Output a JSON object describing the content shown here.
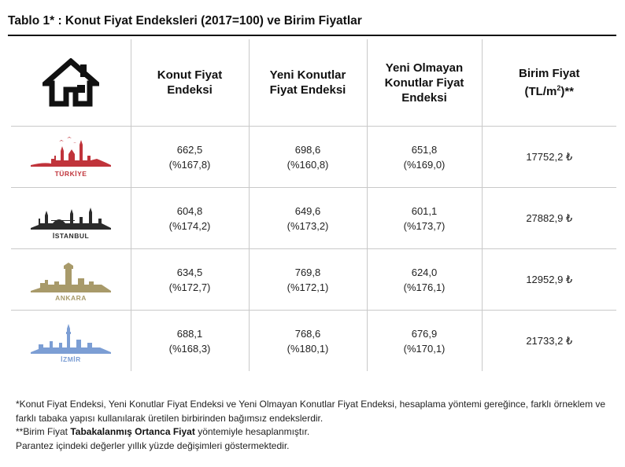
{
  "title": "Tablo 1* : Konut Fiyat Endeksleri (2017=100) ve Birim Fiyatlar",
  "headers": {
    "house_icon": "house-icon",
    "col1": "Konut Fiyat Endeksi",
    "col2": "Yeni Konutlar Fiyat Endeksi",
    "col3": "Yeni Olmayan Konutlar Fiyat Endeksi",
    "col4_main": "Birim Fiyat",
    "col4_unit_pre": "(TL/m",
    "col4_sup": "2",
    "col4_unit_post": ")**"
  },
  "rows": [
    {
      "city": "TÜRKİYE",
      "icon": "turkiye-skyline-icon",
      "color": "#c0343b",
      "kfe": "662,5",
      "kfe_chg": "(%167,8)",
      "ykfe": "698,6",
      "ykfe_chg": "(%160,8)",
      "yokfe": "651,8",
      "yokfe_chg": "(%169,0)",
      "price": "17752,2 ₺"
    },
    {
      "city": "İSTANBUL",
      "icon": "istanbul-skyline-icon",
      "color": "#2b2b2b",
      "kfe": "604,8",
      "kfe_chg": "(%174,2)",
      "ykfe": "649,6",
      "ykfe_chg": "(%173,2)",
      "yokfe": "601,1",
      "yokfe_chg": "(%173,7)",
      "price": "27882,9 ₺"
    },
    {
      "city": "ANKARA",
      "icon": "ankara-skyline-icon",
      "color": "#a89a6a",
      "kfe": "634,5",
      "kfe_chg": "(%172,7)",
      "ykfe": "769,8",
      "ykfe_chg": "(%172,1)",
      "yokfe": "624,0",
      "yokfe_chg": "(%176,1)",
      "price": "12952,9 ₺"
    },
    {
      "city": "İZMİR",
      "icon": "izmir-skyline-icon",
      "color": "#7c9ed4",
      "kfe": "688,1",
      "kfe_chg": "(%168,3)",
      "ykfe": "768,6",
      "ykfe_chg": "(%180,1)",
      "yokfe": "676,9",
      "yokfe_chg": "(%170,1)",
      "price": "21733,2 ₺"
    }
  ],
  "notes": {
    "line1": "*Konut Fiyat Endeksi, Yeni Konutlar Fiyat Endeksi ve Yeni Olmayan Konutlar Fiyat Endeksi, hesaplama yöntemi gereğince, farklı örneklem ve farklı tabaka yapısı kullanılarak üretilen birbirinden bağımsız endekslerdir.",
    "line2_pre": "**Birim Fiyat ",
    "line2_bold": "Tabakalanmış Ortanca Fiyat",
    "line2_post": " yöntemiyle hesaplanmıştır.",
    "line3": "Parantez içindeki değerler yıllık yüzde değişimleri göstermektedir."
  }
}
